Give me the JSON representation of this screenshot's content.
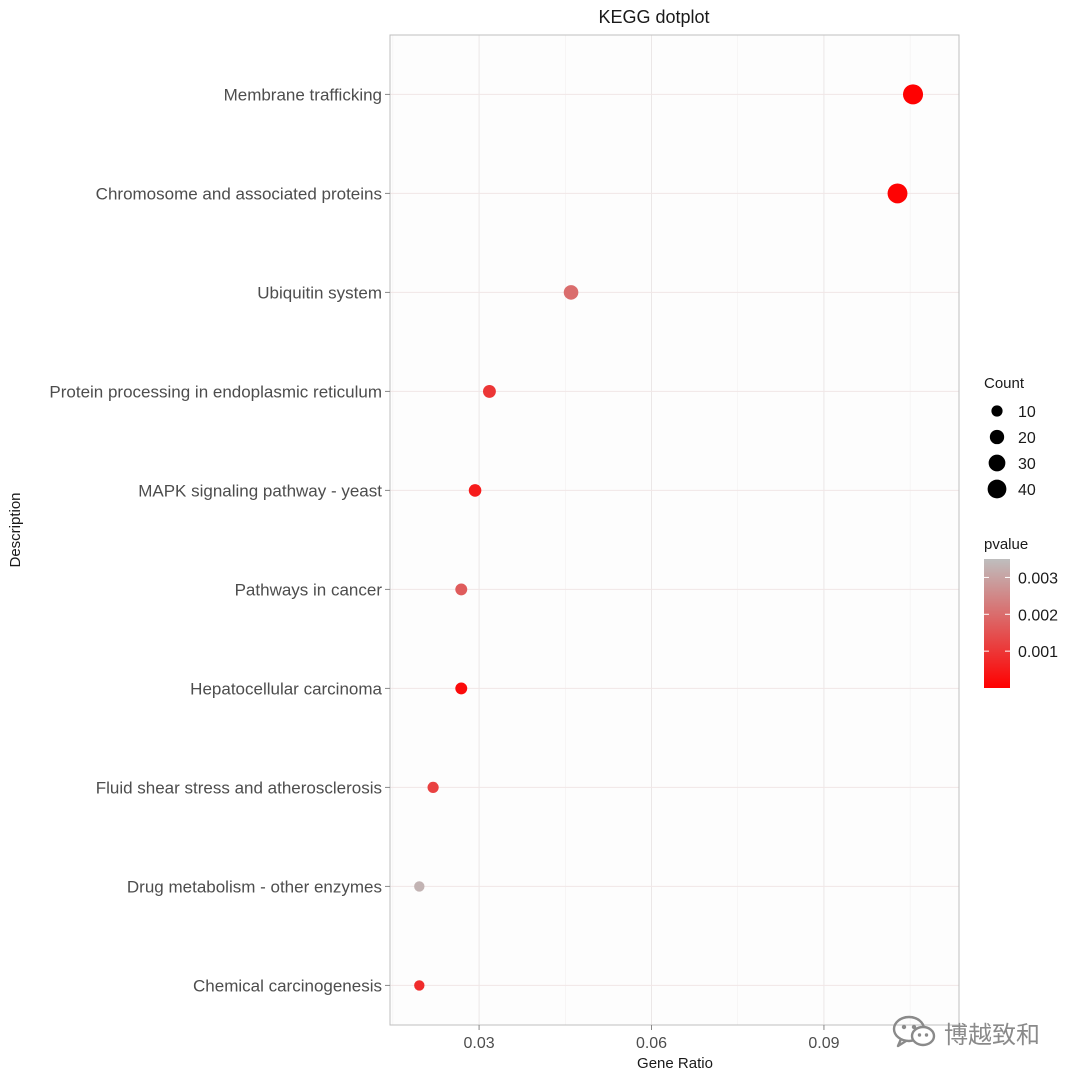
{
  "chart_data": {
    "type": "scatter",
    "title": "KEGG dotplot",
    "xlabel": "Gene Ratio",
    "ylabel": "Description",
    "xlim": [
      0.0145,
      0.1135
    ],
    "xticks": [
      0.03,
      0.06,
      0.09
    ],
    "xtick_labels": [
      "0.03",
      "0.06",
      "0.09"
    ],
    "grid": true,
    "categories": [
      "Membrane trafficking",
      "Chromosome and associated proteins",
      "Ubiquitin system",
      "Protein processing in endoplasmic reticulum",
      "MAPK signaling pathway - yeast",
      "Pathways in cancer",
      "Hepatocellular carcinoma",
      "Fluid shear stress and atherosclerosis",
      "Drug metabolism - other enzymes",
      "Chemical carcinogenesis"
    ],
    "points": [
      {
        "description": "Membrane trafficking",
        "gene_ratio": 0.1055,
        "count": 47,
        "pvalue": 2e-05
      },
      {
        "description": "Chromosome and associated proteins",
        "gene_ratio": 0.1028,
        "count": 46,
        "pvalue": 5e-05
      },
      {
        "description": "Ubiquitin system",
        "gene_ratio": 0.046,
        "count": 21,
        "pvalue": 0.002
      },
      {
        "description": "Protein processing in endoplasmic reticulum",
        "gene_ratio": 0.0318,
        "count": 15,
        "pvalue": 0.001
      },
      {
        "description": "MAPK signaling pathway - yeast",
        "gene_ratio": 0.0293,
        "count": 14,
        "pvalue": 0.0005
      },
      {
        "description": "Pathways in cancer",
        "gene_ratio": 0.0269,
        "count": 12,
        "pvalue": 0.0017
      },
      {
        "description": "Hepatocellular carcinoma",
        "gene_ratio": 0.0269,
        "count": 12,
        "pvalue": 0.0002
      },
      {
        "description": "Fluid shear stress and atherosclerosis",
        "gene_ratio": 0.022,
        "count": 10,
        "pvalue": 0.0012
      },
      {
        "description": "Drug metabolism - other enzymes",
        "gene_ratio": 0.0196,
        "count": 8,
        "pvalue": 0.0033
      },
      {
        "description": "Chemical carcinogenesis",
        "gene_ratio": 0.0196,
        "count": 8,
        "pvalue": 0.0008
      }
    ],
    "size_legend": {
      "title": "Count",
      "values": [
        10,
        20,
        30,
        40
      ],
      "labels": [
        "10",
        "20",
        "30",
        "40"
      ]
    },
    "color_legend": {
      "title": "pvalue",
      "range": [
        0,
        0.0035
      ],
      "ticks": [
        0.003,
        0.002,
        0.001
      ],
      "tick_labels": [
        "0.003",
        "0.002",
        "0.001"
      ],
      "low_color": "#ff0000",
      "high_color": "#bebebe",
      "legend_position": "right"
    }
  },
  "watermark": {
    "text": "博越致和"
  }
}
